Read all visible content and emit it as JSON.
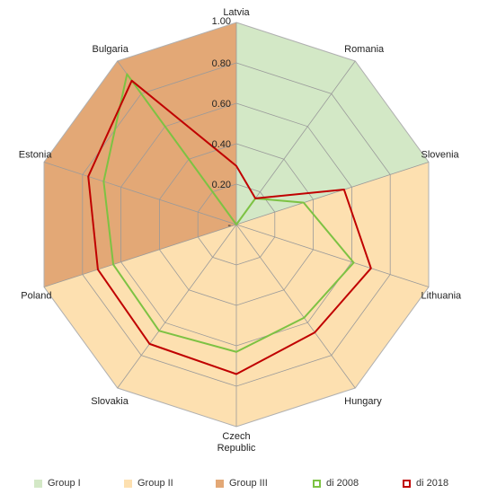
{
  "chart_data": {
    "type": "radar",
    "axes": [
      "Latvia",
      "Romania",
      "Slovenia",
      "Lithuania",
      "Hungary",
      "Czech Republic",
      "Slovakia",
      "Poland",
      "Estonia",
      "Bulgaria"
    ],
    "tick_labels": [
      "-",
      "0.20",
      "0.40",
      "0.60",
      "0.80",
      "1.00"
    ],
    "range": [
      0,
      1
    ],
    "series": [
      {
        "name": "di 2008",
        "color": "#7dc243",
        "values": [
          0,
          0.16,
          0.35,
          0.61,
          0.57,
          0.63,
          0.65,
          0.64,
          0.69,
          0.92
        ]
      },
      {
        "name": "di 2018",
        "color": "#c00000",
        "values": [
          0.29,
          0.16,
          0.56,
          0.7,
          0.66,
          0.74,
          0.73,
          0.72,
          0.77,
          0.88
        ]
      }
    ],
    "groups": [
      {
        "name": "Group I",
        "color": "#d3e8c6",
        "axes": [
          "Latvia",
          "Romania",
          "Slovenia"
        ]
      },
      {
        "name": "Group II",
        "color": "#fde0b0",
        "axes": [
          "Slovenia",
          "Lithuania",
          "Hungary",
          "Czech Republic",
          "Slovakia",
          "Poland"
        ]
      },
      {
        "name": "Group III",
        "color": "#e3a876",
        "axes": [
          "Poland",
          "Estonia",
          "Bulgaria",
          "Latvia"
        ]
      }
    ]
  }
}
